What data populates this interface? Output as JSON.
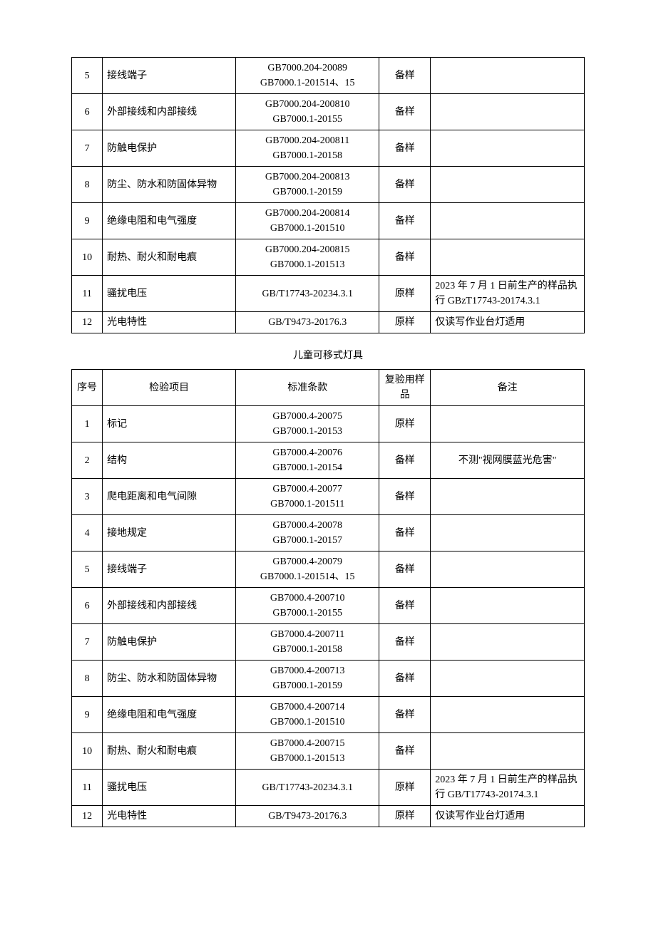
{
  "table1": {
    "rows": [
      {
        "num": "5",
        "item": "接线端子",
        "std": "GB7000.204-20089\nGB7000.1-201514、15",
        "sample": "备样",
        "note": ""
      },
      {
        "num": "6",
        "item": "外部接线和内部接线",
        "std": "GB7000.204-200810\nGB7000.1-20155",
        "sample": "备样",
        "note": ""
      },
      {
        "num": "7",
        "item": "防触电保护",
        "std": "GB7000.204-200811\nGB7000.1-20158",
        "sample": "备样",
        "note": ""
      },
      {
        "num": "8",
        "item": "防尘、防水和防固体异物",
        "std": "GB7000.204-200813\nGB7000.1-20159",
        "sample": "备样",
        "note": ""
      },
      {
        "num": "9",
        "item": "绝缘电阻和电气强度",
        "std": "GB7000.204-200814\nGB7000.1-201510",
        "sample": "备样",
        "note": ""
      },
      {
        "num": "10",
        "item": "耐热、耐火和耐电痕",
        "std": "GB7000.204-200815\nGB7000.1-201513",
        "sample": "备样",
        "note": ""
      },
      {
        "num": "11",
        "item": "骚扰电压",
        "std": "GB/T17743-20234.3.1",
        "sample": "原样",
        "note": "2023 年 7 月 1 日前生产的样品执行 GBzT17743-20174.3.1"
      },
      {
        "num": "12",
        "item": "光电特性",
        "std": "GB/T9473-20176.3",
        "sample": "原样",
        "note": "仅读写作业台灯适用"
      }
    ]
  },
  "section2_title": "儿童可移式灯具",
  "table2": {
    "headers": {
      "num": "序号",
      "item": "检验项目",
      "std": "标准条款",
      "sample": "复验用样品",
      "note": "备注"
    },
    "rows": [
      {
        "num": "1",
        "item": "标记",
        "std": "GB7000.4-20075\nGB7000.1-20153",
        "sample": "原样",
        "note": ""
      },
      {
        "num": "2",
        "item": "结构",
        "std": "GB7000.4-20076\nGB7000.1-20154",
        "sample": "备样",
        "note": "不测\"视网膜蓝光危害\"",
        "note_center": true
      },
      {
        "num": "3",
        "item": "爬电距离和电气间隙",
        "std": "GB7000.4-20077\nGB7000.1-201511",
        "sample": "备样",
        "note": ""
      },
      {
        "num": "4",
        "item": "接地规定",
        "std": "GB7000.4-20078\nGB7000.1-20157",
        "sample": "备样",
        "note": ""
      },
      {
        "num": "5",
        "item": "接线端子",
        "std": "GB7000.4-20079\nGB7000.1-201514、15",
        "sample": "备样",
        "note": ""
      },
      {
        "num": "6",
        "item": "外部接线和内部接线",
        "std": "GB7000.4-200710\nGB7000.1-20155",
        "sample": "备样",
        "note": ""
      },
      {
        "num": "7",
        "item": "防触电保护",
        "std": "GB7000.4-200711\nGB7000.1-20158",
        "sample": "备样",
        "note": ""
      },
      {
        "num": "8",
        "item": "防尘、防水和防固体异物",
        "std": "GB7000.4-200713\nGB7000.1-20159",
        "sample": "备样",
        "note": ""
      },
      {
        "num": "9",
        "item": "绝缘电阻和电气强度",
        "std": "GB7000.4-200714\nGB7000.1-201510",
        "sample": "备样",
        "note": ""
      },
      {
        "num": "10",
        "item": "耐热、耐火和耐电痕",
        "std": "GB7000.4-200715\nGB7000.1-201513",
        "sample": "备样",
        "note": ""
      },
      {
        "num": "11",
        "item": "骚扰电压",
        "std": "GB/T17743-20234.3.1",
        "sample": "原样",
        "note": "2023 年 7 月 1 日前生产的样品执行 GB/T17743-20174.3.1"
      },
      {
        "num": "12",
        "item": "光电特性",
        "std": "GB/T9473-20176.3",
        "sample": "原样",
        "note": "仅读写作业台灯适用"
      }
    ]
  }
}
